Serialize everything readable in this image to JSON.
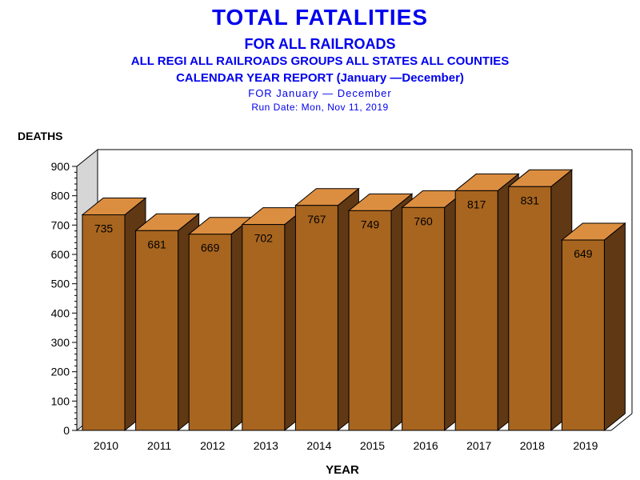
{
  "header": {
    "title": "TOTAL FATALITIES",
    "subtitle1": "FOR ALL RAILROADS",
    "subtitle2": "ALL REGI ALL RAILROADS GROUPS ALL STATES ALL COUNTIES",
    "subtitle3": "CALENDAR YEAR REPORT (January —December)",
    "subtitle4": "FOR January  —  December",
    "run_date": "Run Date:   Mon, Nov 11, 2019"
  },
  "colors": {
    "title": "#0000ee",
    "bar_front": "#a8651f",
    "bar_top": "#dc8e40",
    "bar_side": "#603814",
    "back_wall": "#d6d6d6"
  },
  "chart_data": {
    "type": "bar",
    "title": "TOTAL FATALITIES",
    "xlabel": "YEAR",
    "ylabel": "DEATHS",
    "categories": [
      "2010",
      "2011",
      "2012",
      "2013",
      "2014",
      "2015",
      "2016",
      "2017",
      "2018",
      "2019"
    ],
    "values": [
      735,
      681,
      669,
      702,
      767,
      749,
      760,
      817,
      831,
      649
    ],
    "ylim": [
      0,
      900
    ],
    "yticks": [
      0,
      100,
      200,
      300,
      400,
      500,
      600,
      700,
      800,
      900
    ],
    "data_labels": true,
    "style": "3d"
  }
}
